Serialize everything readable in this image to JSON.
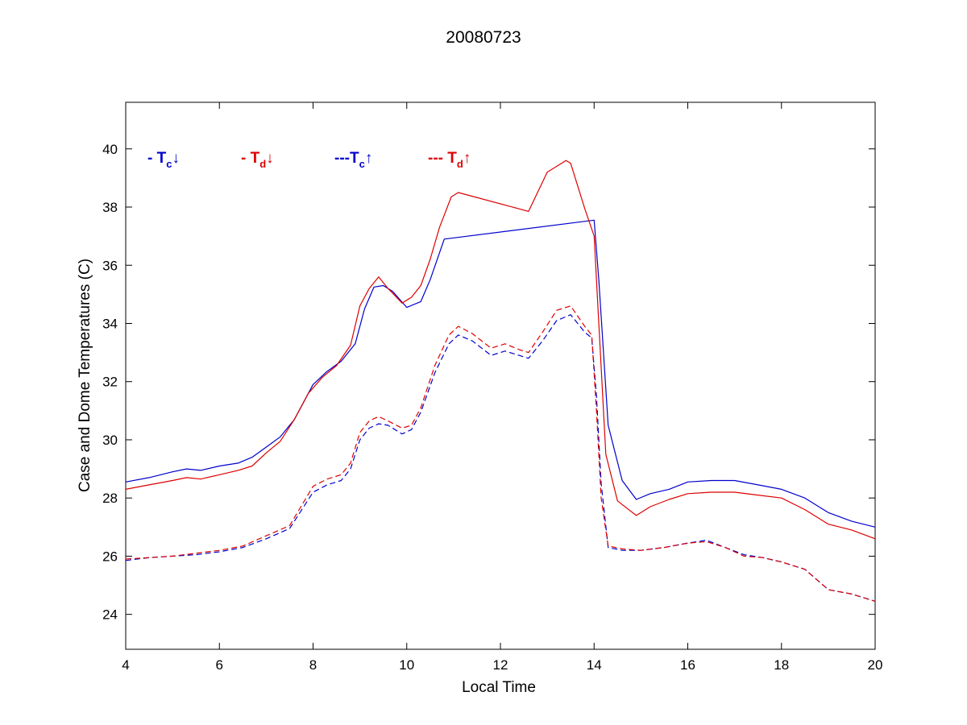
{
  "colors": {
    "case": "#0000cc",
    "dome": "#dd0000",
    "axis": "#000000",
    "background": "#ffffff"
  },
  "chart_data": {
    "type": "line",
    "title": "20080723",
    "xlabel": "Local Time",
    "ylabel": "Case and Dome Temperatures (C)",
    "xlim": [
      4,
      20
    ],
    "ylim": [
      22.8,
      41.6
    ],
    "xticks": [
      4,
      6,
      8,
      10,
      12,
      14,
      16,
      18,
      20
    ],
    "yticks": [
      24,
      26,
      28,
      30,
      32,
      34,
      36,
      38,
      40
    ],
    "grid": false,
    "legend": {
      "placement": "top-left",
      "entries": [
        {
          "prefix": "- ",
          "symbol": "T",
          "sub": "c",
          "arrow": "↓",
          "color_key": "case"
        },
        {
          "prefix": "- ",
          "symbol": "T",
          "sub": "d",
          "arrow": "↓",
          "color_key": "dome"
        },
        {
          "prefix": "---",
          "symbol": "T",
          "sub": "c",
          "arrow": "↑",
          "color_key": "case"
        },
        {
          "prefix": "--- ",
          "symbol": "T",
          "sub": "d",
          "arrow": "↑",
          "color_key": "dome"
        }
      ]
    },
    "series": [
      {
        "color_key": "case",
        "dash": "solid",
        "x": [
          4.0,
          4.5,
          5.0,
          5.3,
          5.6,
          6.0,
          6.4,
          6.7,
          7.0,
          7.3,
          7.6,
          8.0,
          8.3,
          8.6,
          8.9,
          9.1,
          9.3,
          9.5,
          9.7,
          10.0,
          10.3,
          10.5,
          10.8,
          14.0,
          14.1,
          14.3,
          14.6,
          14.9,
          15.2,
          15.6,
          16.0,
          16.5,
          17.0,
          17.5,
          18.0,
          18.5,
          19.0,
          19.5,
          20.0
        ],
        "y": [
          28.55,
          28.7,
          28.9,
          29.0,
          28.95,
          29.1,
          29.2,
          29.4,
          29.75,
          30.1,
          30.7,
          31.9,
          32.35,
          32.7,
          33.3,
          34.5,
          35.25,
          35.3,
          35.1,
          34.55,
          34.75,
          35.5,
          36.9,
          37.55,
          35.5,
          30.5,
          28.6,
          27.95,
          28.15,
          28.3,
          28.55,
          28.6,
          28.6,
          28.45,
          28.3,
          28.0,
          27.5,
          27.2,
          27.0
        ]
      },
      {
        "color_key": "dome",
        "dash": "solid",
        "x": [
          4.0,
          4.5,
          5.0,
          5.3,
          5.6,
          6.0,
          6.4,
          6.7,
          7.0,
          7.3,
          7.6,
          7.9,
          8.2,
          8.5,
          8.8,
          9.0,
          9.2,
          9.4,
          9.6,
          9.9,
          10.1,
          10.3,
          10.5,
          10.7,
          10.95,
          11.1,
          12.6,
          13.0,
          13.4,
          13.5,
          13.8,
          14.0,
          14.1,
          14.25,
          14.5,
          14.9,
          15.2,
          15.6,
          16.0,
          16.5,
          17.0,
          17.5,
          18.0,
          18.5,
          19.0,
          19.5,
          20.0
        ],
        "y": [
          28.3,
          28.45,
          28.6,
          28.7,
          28.65,
          28.8,
          28.95,
          29.1,
          29.55,
          29.95,
          30.7,
          31.6,
          32.15,
          32.55,
          33.25,
          34.6,
          35.2,
          35.6,
          35.2,
          34.7,
          34.9,
          35.3,
          36.2,
          37.3,
          38.35,
          38.5,
          37.85,
          39.2,
          39.6,
          39.5,
          37.95,
          37.0,
          34.0,
          29.5,
          27.9,
          27.4,
          27.7,
          27.95,
          28.15,
          28.2,
          28.2,
          28.1,
          28.0,
          27.6,
          27.1,
          26.9,
          26.6
        ]
      },
      {
        "color_key": "case",
        "dash": "dashed",
        "x": [
          4.0,
          4.5,
          5.0,
          5.5,
          6.0,
          6.5,
          7.0,
          7.5,
          8.0,
          8.3,
          8.6,
          8.8,
          9.0,
          9.2,
          9.4,
          9.6,
          9.9,
          10.1,
          10.3,
          10.6,
          10.9,
          11.1,
          11.4,
          11.8,
          12.1,
          12.4,
          12.6,
          12.9,
          13.2,
          13.5,
          13.8,
          13.95,
          14.05,
          14.15,
          14.3,
          14.6,
          15.0,
          15.5,
          16.0,
          16.4,
          16.8,
          17.2,
          17.6,
          18.0,
          18.5,
          19.0,
          19.5,
          20.0
        ],
        "y": [
          25.85,
          25.95,
          26.0,
          26.05,
          26.15,
          26.3,
          26.6,
          26.95,
          28.2,
          28.45,
          28.6,
          29.0,
          30.0,
          30.4,
          30.55,
          30.5,
          30.2,
          30.35,
          30.95,
          32.3,
          33.3,
          33.6,
          33.4,
          32.9,
          33.05,
          32.9,
          32.8,
          33.4,
          34.1,
          34.3,
          33.7,
          33.5,
          31.5,
          28.5,
          26.3,
          26.2,
          26.2,
          26.3,
          26.45,
          26.55,
          26.3,
          26.05,
          25.95,
          25.8,
          25.55,
          24.85,
          24.7,
          24.45
        ]
      },
      {
        "color_key": "dome",
        "dash": "dashed",
        "x": [
          4.0,
          4.5,
          5.0,
          5.5,
          6.0,
          6.5,
          7.0,
          7.5,
          8.0,
          8.3,
          8.6,
          8.8,
          9.0,
          9.2,
          9.4,
          9.6,
          9.9,
          10.1,
          10.3,
          10.6,
          10.9,
          11.1,
          11.4,
          11.8,
          12.1,
          12.4,
          12.6,
          12.9,
          13.2,
          13.5,
          13.8,
          13.95,
          14.05,
          14.15,
          14.3,
          14.6,
          15.0,
          15.5,
          16.0,
          16.4,
          16.8,
          17.2,
          17.6,
          18.0,
          18.5,
          19.0,
          19.5,
          20.0
        ],
        "y": [
          25.9,
          25.95,
          26.0,
          26.1,
          26.2,
          26.35,
          26.7,
          27.05,
          28.4,
          28.65,
          28.8,
          29.2,
          30.25,
          30.65,
          30.8,
          30.65,
          30.4,
          30.5,
          31.1,
          32.55,
          33.6,
          33.9,
          33.65,
          33.15,
          33.3,
          33.1,
          33.0,
          33.7,
          34.45,
          34.6,
          33.9,
          33.6,
          31.0,
          28.0,
          26.35,
          26.25,
          26.2,
          26.3,
          26.45,
          26.5,
          26.3,
          26.0,
          25.95,
          25.8,
          25.55,
          24.85,
          24.7,
          24.45
        ]
      }
    ]
  }
}
